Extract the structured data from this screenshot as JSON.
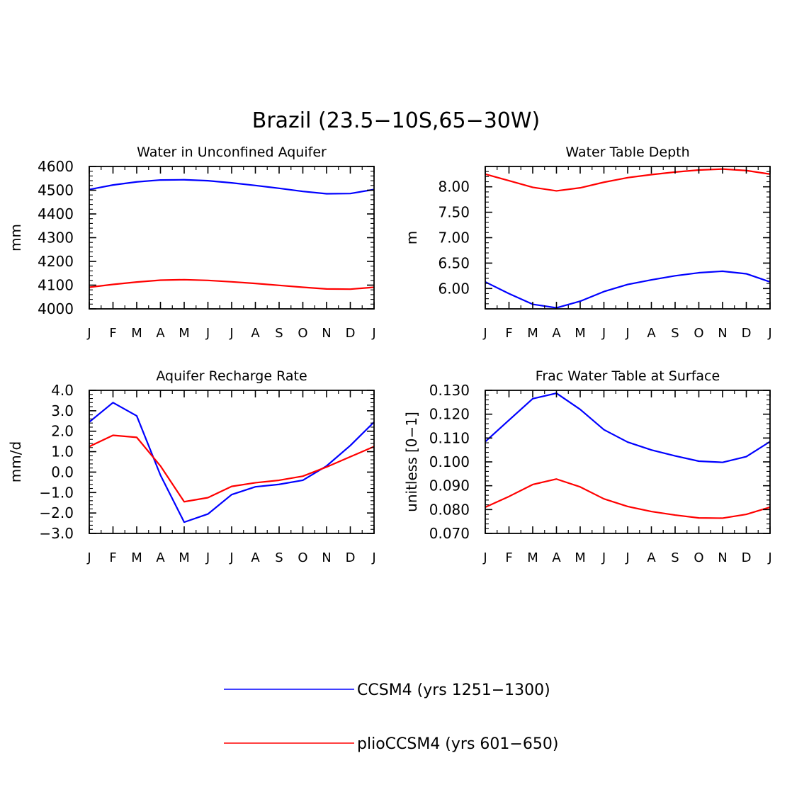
{
  "figure_title": "Brazil (23.5−10S,65−30W)",
  "colors": {
    "ccsm4": "#0000ff",
    "plio": "#ff0000",
    "axis": "#000000"
  },
  "legend": {
    "entries": [
      {
        "label": "CCSM4 (yrs 1251−1300)",
        "color": "#0000ff"
      },
      {
        "label": "plioCCSM4 (yrs 601−650)",
        "color": "#ff0000"
      }
    ]
  },
  "chart_data": [
    {
      "type": "line",
      "title": "Water in Unconfined Aquifer",
      "xlabel": "",
      "ylabel": "mm",
      "categories": [
        "J",
        "F",
        "M",
        "A",
        "M",
        "J",
        "J",
        "A",
        "S",
        "O",
        "N",
        "D",
        "J"
      ],
      "ylim": [
        4000,
        4600
      ],
      "yticks": [
        4000,
        4100,
        4200,
        4300,
        4400,
        4500,
        4600
      ],
      "ytick_labels": [
        "4000",
        "4100",
        "4200",
        "4300",
        "4400",
        "4500",
        "4600"
      ],
      "yminor": 20,
      "series": [
        {
          "name": "CCSM4 (yrs 1251−1300)",
          "values": [
            4503,
            4522,
            4535,
            4543,
            4544,
            4540,
            4531,
            4520,
            4508,
            4495,
            4485,
            4486,
            4503
          ]
        },
        {
          "name": "plioCCSM4 (yrs 601−650)",
          "values": [
            4091,
            4103,
            4113,
            4121,
            4123,
            4120,
            4114,
            4107,
            4099,
            4091,
            4084,
            4083,
            4091
          ]
        }
      ]
    },
    {
      "type": "line",
      "title": "Water Table Depth",
      "xlabel": "",
      "ylabel": "m",
      "categories": [
        "J",
        "F",
        "M",
        "A",
        "M",
        "J",
        "J",
        "A",
        "S",
        "O",
        "N",
        "D",
        "J"
      ],
      "ylim": [
        5.6,
        8.4
      ],
      "yticks": [
        6.0,
        6.5,
        7.0,
        7.5,
        8.0
      ],
      "ytick_labels": [
        "6.00",
        "6.50",
        "7.00",
        "7.50",
        "8.00"
      ],
      "yminor": 0.1,
      "series": [
        {
          "name": "CCSM4 (yrs 1251−1300)",
          "values": [
            6.13,
            5.9,
            5.69,
            5.62,
            5.75,
            5.94,
            6.08,
            6.17,
            6.25,
            6.31,
            6.34,
            6.29,
            6.13
          ]
        },
        {
          "name": "plioCCSM4 (yrs 601−650)",
          "values": [
            8.25,
            8.12,
            7.99,
            7.92,
            7.98,
            8.09,
            8.18,
            8.24,
            8.29,
            8.33,
            8.35,
            8.32,
            8.25
          ]
        }
      ]
    },
    {
      "type": "line",
      "title": "Aquifer Recharge Rate",
      "xlabel": "",
      "ylabel": "mm/d",
      "categories": [
        "J",
        "F",
        "M",
        "A",
        "M",
        "J",
        "J",
        "A",
        "S",
        "O",
        "N",
        "D",
        "J"
      ],
      "ylim": [
        -3.0,
        4.0
      ],
      "yticks": [
        -3.0,
        -2.0,
        -1.0,
        0.0,
        1.0,
        2.0,
        3.0,
        4.0
      ],
      "ytick_labels": [
        "−3.0",
        "−2.0",
        "−1.0",
        "0.0",
        "1.0",
        "2.0",
        "3.0",
        "4.0"
      ],
      "yminor": 0.2,
      "series": [
        {
          "name": "CCSM4 (yrs 1251−1300)",
          "values": [
            2.45,
            3.4,
            2.75,
            -0.15,
            -2.45,
            -2.05,
            -1.1,
            -0.72,
            -0.6,
            -0.4,
            0.3,
            1.3,
            2.45
          ]
        },
        {
          "name": "plioCCSM4 (yrs 601−650)",
          "values": [
            1.25,
            1.8,
            1.7,
            0.3,
            -1.45,
            -1.25,
            -0.7,
            -0.52,
            -0.4,
            -0.2,
            0.25,
            0.75,
            1.25
          ]
        }
      ]
    },
    {
      "type": "line",
      "title": "Frac Water Table at Surface",
      "xlabel": "",
      "ylabel": "unitless [0−1]",
      "categories": [
        "J",
        "F",
        "M",
        "A",
        "M",
        "J",
        "J",
        "A",
        "S",
        "O",
        "N",
        "D",
        "J"
      ],
      "ylim": [
        0.07,
        0.13
      ],
      "yticks": [
        0.07,
        0.08,
        0.09,
        0.1,
        0.11,
        0.12,
        0.13
      ],
      "ytick_labels": [
        "0.070",
        "0.080",
        "0.090",
        "0.100",
        "0.110",
        "0.120",
        "0.130"
      ],
      "yminor": 0.002,
      "series": [
        {
          "name": "CCSM4 (yrs 1251−1300)",
          "values": [
            0.1085,
            0.1175,
            0.1265,
            0.1288,
            0.122,
            0.1135,
            0.1083,
            0.105,
            0.1025,
            0.1003,
            0.0998,
            0.1022,
            0.1085
          ]
        },
        {
          "name": "plioCCSM4 (yrs 601−650)",
          "values": [
            0.081,
            0.0855,
            0.0905,
            0.0928,
            0.0895,
            0.0845,
            0.0813,
            0.0792,
            0.0777,
            0.0765,
            0.0764,
            0.078,
            0.081
          ]
        }
      ]
    }
  ]
}
